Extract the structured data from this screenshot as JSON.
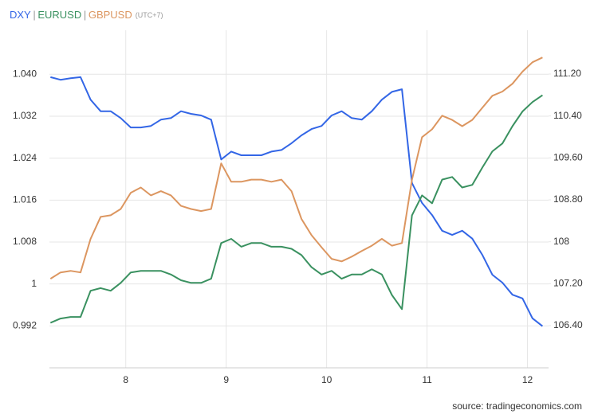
{
  "chart_data": {
    "type": "line",
    "timezone_note": "(UTC+7)",
    "source": "source: tradingeconomics.com",
    "x": [
      7.25,
      7.35,
      7.45,
      7.55,
      7.65,
      7.75,
      7.85,
      7.95,
      8.05,
      8.15,
      8.25,
      8.35,
      8.45,
      8.55,
      8.65,
      8.75,
      8.85,
      8.95,
      9.05,
      9.15,
      9.25,
      9.35,
      9.45,
      9.55,
      9.65,
      9.75,
      9.85,
      9.95,
      10.05,
      10.15,
      10.25,
      10.35,
      10.45,
      10.55,
      10.65,
      10.75,
      10.85,
      10.95,
      11.05,
      11.15,
      11.25,
      11.35,
      11.45,
      11.55,
      11.65,
      11.75,
      11.85,
      11.95,
      12.05,
      12.15
    ],
    "series": [
      {
        "name": "DXY",
        "color": "#3366e6",
        "axis": "y2",
        "values": [
          111.14,
          111.09,
          111.12,
          111.14,
          110.71,
          110.49,
          110.49,
          110.36,
          110.18,
          110.18,
          110.21,
          110.33,
          110.36,
          110.49,
          110.44,
          110.41,
          110.33,
          109.57,
          109.72,
          109.65,
          109.65,
          109.65,
          109.72,
          109.75,
          109.88,
          110.03,
          110.15,
          110.21,
          110.41,
          110.49,
          110.36,
          110.33,
          110.49,
          110.71,
          110.86,
          110.91,
          109.12,
          108.74,
          108.51,
          108.21,
          108.13,
          108.21,
          108.06,
          107.75,
          107.37,
          107.22,
          106.99,
          106.92,
          106.54,
          106.39
        ]
      },
      {
        "name": "EURUSD",
        "color": "#3a9160",
        "values": [
          0.9926,
          0.9934,
          0.9937,
          0.9937,
          0.9987,
          0.9992,
          0.9987,
          1.0002,
          1.0022,
          1.0025,
          1.0025,
          1.0025,
          1.0018,
          1.0007,
          1.0002,
          1.0002,
          1.001,
          1.0078,
          1.0086,
          1.0071,
          1.0078,
          1.0078,
          1.0071,
          1.0071,
          1.0067,
          1.0055,
          1.0032,
          1.0018,
          1.0025,
          1.001,
          1.0018,
          1.0018,
          1.0028,
          1.0018,
          0.9979,
          0.9952,
          1.0131,
          1.0169,
          1.0154,
          1.0199,
          1.0204,
          1.0184,
          1.0189,
          1.0222,
          1.0253,
          1.0268,
          1.0301,
          1.0329,
          1.0347,
          1.036
        ]
      },
      {
        "name": "GBPUSD",
        "color": "#dc9660",
        "values": [
          1.001,
          1.0022,
          1.0025,
          1.0022,
          1.0086,
          1.0128,
          1.0131,
          1.0143,
          1.0174,
          1.0184,
          1.0169,
          1.0177,
          1.0169,
          1.0149,
          1.0143,
          1.0139,
          1.0143,
          1.023,
          1.0195,
          1.0195,
          1.0199,
          1.0199,
          1.0195,
          1.0199,
          1.0177,
          1.0124,
          1.0093,
          1.007,
          1.0048,
          1.0043,
          1.0052,
          1.0063,
          1.0073,
          1.0086,
          1.0073,
          1.0078,
          1.0199,
          1.028,
          1.0295,
          1.0321,
          1.0313,
          1.0301,
          1.0313,
          1.0336,
          1.0359,
          1.0367,
          1.0382,
          1.0405,
          1.0423,
          1.0432
        ]
      }
    ],
    "xlim": [
      7.24,
      12.21
    ],
    "xticks": [
      8,
      9,
      10,
      11,
      12
    ],
    "ylim": [
      0.984,
      1.0484
    ],
    "yticks": [
      0.992,
      1,
      1.008,
      1.016,
      1.024,
      1.032,
      {
        "value": 1.04,
        "label": "1.040"
      }
    ],
    "y2lim": [
      105.595,
      112.035
    ],
    "y2ticks": [
      {
        "value": 106.4,
        "label": "106.40"
      },
      {
        "value": 107.2,
        "label": "107.20"
      },
      108,
      {
        "value": 108.8,
        "label": "108.80"
      },
      {
        "value": 109.6,
        "label": "109.60"
      },
      {
        "value": 110.4,
        "label": "110.40"
      },
      {
        "value": 111.2,
        "label": "111.20"
      }
    ],
    "grid": true
  }
}
